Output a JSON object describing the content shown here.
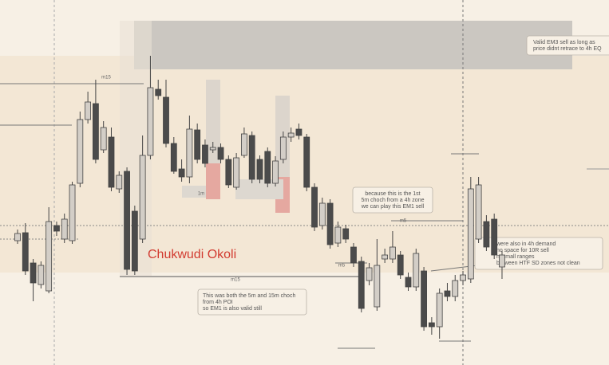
{
  "chart_data": {
    "type": "candlestick",
    "series": [
      {
        "name": "m5",
        "up_color": "#d3cec7",
        "down_color": "#4b4b4b",
        "open": [
          156,
          166,
          128,
          101,
          93,
          175,
          158,
          156,
          228,
          308,
          328,
          270,
          286,
          221,
          243,
          193,
          158,
          263,
          346,
          336,
          278,
          246,
          236,
          295,
          276,
          270,
          273,
          258,
          223,
          263,
          288,
          258,
          268,
          228,
          258,
          286,
          296,
          286,
          223,
          175,
          203,
          153,
          171,
          148,
          130,
          106,
          73,
          133,
          133,
          138,
          110,
          98,
          118,
          53,
          48,
          93,
          86,
          106,
          108,
          158,
          180,
          183,
          123
        ],
        "high": [
          170,
          178,
          133,
          130,
          198,
          180,
          190,
          230,
          318,
          343,
          358,
          306,
          298,
          243,
          248,
          200,
          288,
          388,
          358,
          358,
          286,
          258,
          313,
          303,
          283,
          280,
          278,
          263,
          266,
          298,
          293,
          263,
          273,
          262,
          293,
          298,
          303,
          290,
          228,
          210,
          208,
          180,
          176,
          153,
          136,
          128,
          158,
          146,
          168,
          143,
          116,
          146,
          123,
          60,
          96,
          103,
          113,
          118,
          236,
          236,
          188,
          190,
          143
        ],
        "low": [
          152,
          113,
          80,
          96,
          90,
          162,
          153,
          152,
          223,
          303,
          253,
          266,
          218,
          216,
          113,
          113,
          153,
          258,
          333,
          273,
          240,
          230,
          228,
          253,
          248,
          266,
          253,
          222,
          220,
          260,
          228,
          228,
          223,
          224,
          253,
          280,
          283,
          218,
          168,
          170,
          146,
          148,
          153,
          123,
          66,
          100,
          68,
          128,
          128,
          108,
          93,
          93,
          43,
          38,
          33,
          80,
          80,
          100,
          103,
          153,
          143,
          133,
          108
        ],
        "close": [
          165,
          118,
          103,
          125,
          180,
          168,
          183,
          226,
          308,
          330,
          258,
          298,
          223,
          238,
          120,
          118,
          263,
          348,
          338,
          278,
          243,
          236,
          296,
          258,
          253,
          273,
          258,
          226,
          260,
          290,
          233,
          233,
          228,
          256,
          286,
          291,
          288,
          223,
          173,
          203,
          151,
          173,
          158,
          128,
          71,
          122,
          125,
          138,
          148,
          113,
          98,
          140,
          48,
          48,
          90,
          86,
          106,
          113,
          221,
          226,
          148,
          138,
          138
        ]
      }
    ],
    "ylim": [
      0,
      458
    ],
    "watermark": "Chukwudi Okoli",
    "level_labels": [
      "m15",
      "m15",
      "m5",
      "m5",
      "1m"
    ],
    "annotations": [
      {
        "lines": [
          "Valid EM3 sell as long as",
          "price didnt retrace to 4h EQ"
        ]
      },
      {
        "lines": [
          "because this is the 1st",
          "5m choch from a 4h zone",
          "we can play this EM1 sell"
        ]
      },
      {
        "lines": [
          "This was both the 5m and 15m choch",
          "from 4h POI",
          "so EM1 is also valid still"
        ]
      },
      {
        "lines": [
          "were also in 4h demand",
          "no space for 10R sell",
          "ht small ranges",
          "between HTF SD zones not clean"
        ]
      }
    ]
  }
}
